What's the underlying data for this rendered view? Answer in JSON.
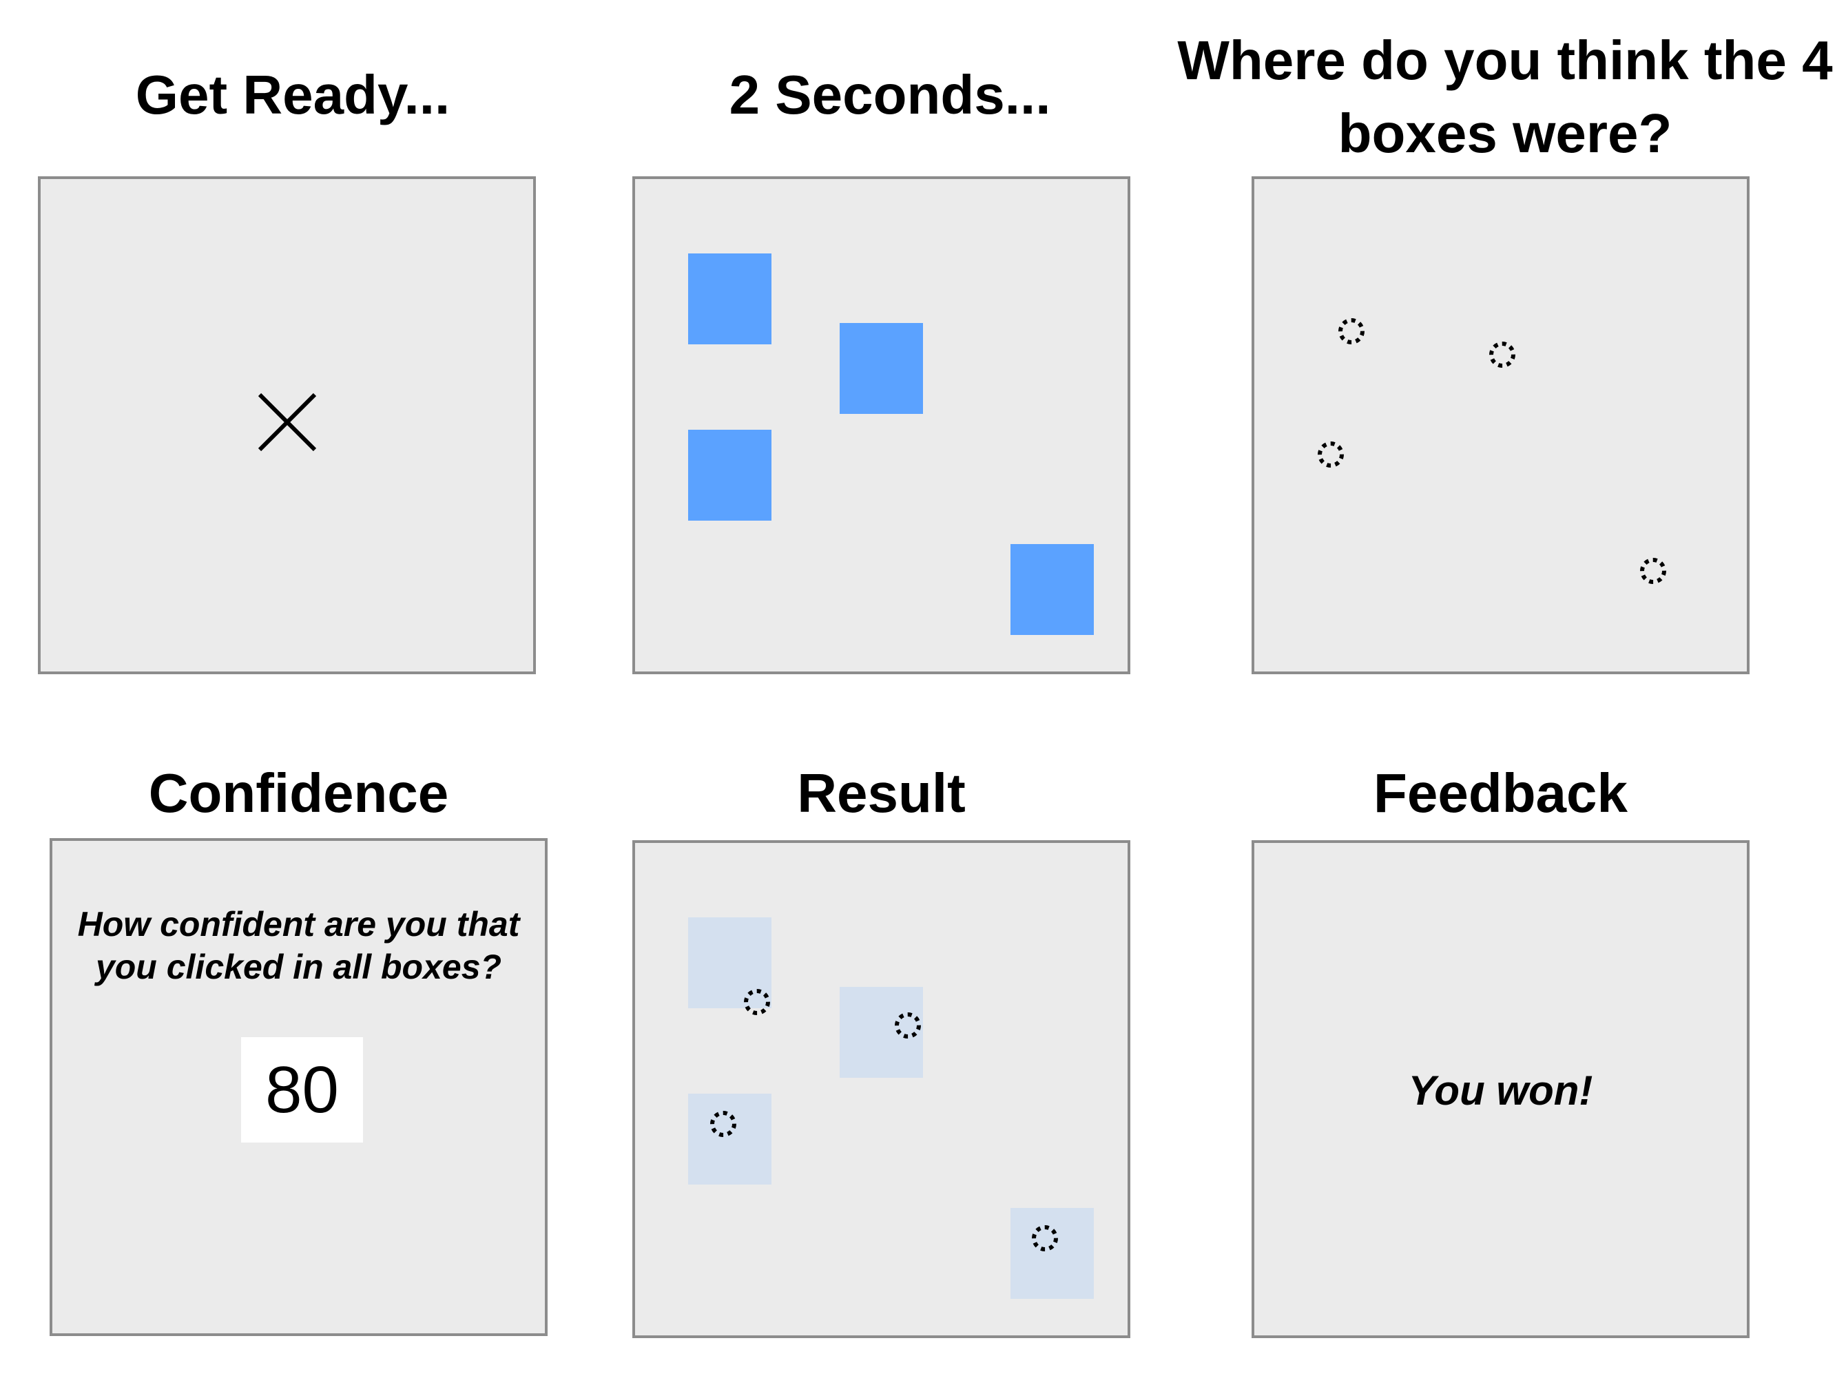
{
  "panels": {
    "get_ready": {
      "title": "Get Ready...",
      "icon": "fixation-cross-icon"
    },
    "stimulus": {
      "title": "2 Seconds...",
      "box_color": "#5ba2ff"
    },
    "response": {
      "title": "Where do you think the 4 boxes were?",
      "icon": "click-marker-icon"
    },
    "confidence": {
      "title": "Confidence",
      "prompt": "How confident are you that you clicked in all boxes?",
      "value": "80"
    },
    "result": {
      "title": "Result",
      "box_color": "#d4e0ef"
    },
    "feedback": {
      "title": "Feedback",
      "message": "You won!"
    }
  },
  "colors": {
    "panel_background": "#ebebeb",
    "panel_border": "#8c8c8c"
  }
}
